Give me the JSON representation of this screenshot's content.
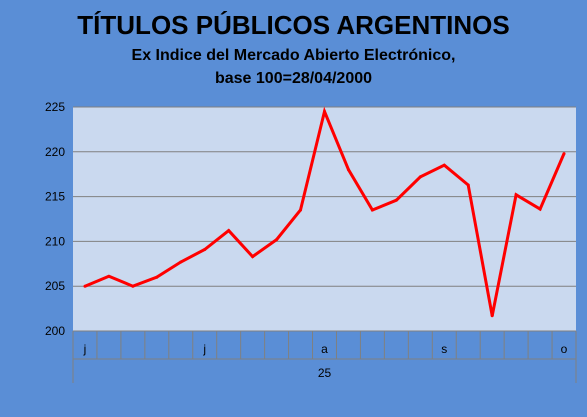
{
  "chart_data": {
    "type": "line",
    "title": "TÍTULOS PÚBLICOS ARGENTINOS",
    "subtitle_line1": "Ex Indice del Mercado Abierto Electrónico,",
    "subtitle_line2": "base 100=28/04/2000",
    "xlabel": "",
    "ylabel": "",
    "ylim": [
      200,
      225
    ],
    "yticks": [
      200,
      205,
      210,
      215,
      220,
      225
    ],
    "grid": true,
    "legend": "none",
    "x_month_labels": [
      "j",
      "",
      "",
      "",
      "",
      "j",
      "",
      "",
      "",
      "",
      "a",
      "",
      "",
      "",
      "",
      "s",
      "",
      "",
      "",
      "",
      "o"
    ],
    "year_label": "25",
    "series": [
      {
        "color": "#ff0000",
        "values": [
          205.0,
          206.1,
          205.0,
          206.0,
          207.7,
          209.1,
          211.2,
          208.3,
          210.2,
          213.5,
          224.5,
          218.0,
          213.5,
          214.6,
          217.2,
          218.5,
          216.3,
          201.7,
          215.2,
          213.6,
          219.8
        ]
      }
    ]
  }
}
